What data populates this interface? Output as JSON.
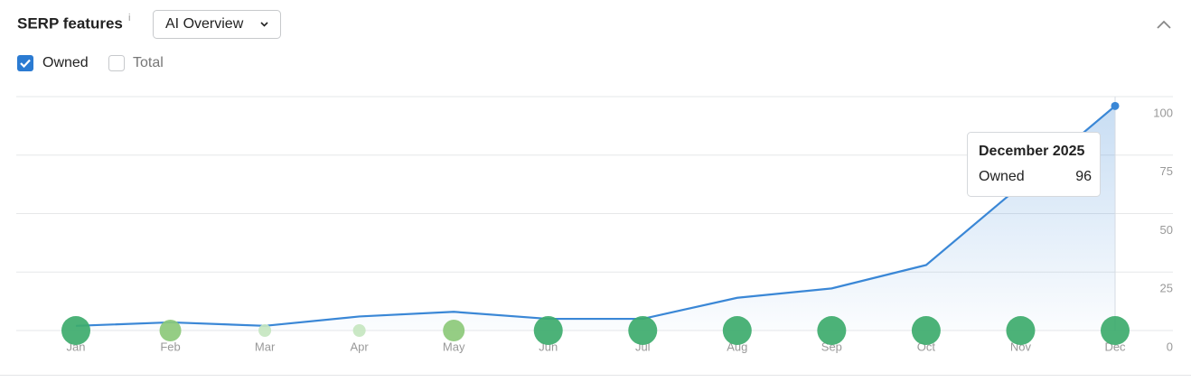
{
  "chart_data": {
    "type": "line",
    "title": "SERP features",
    "info": "i",
    "dropdown": "AI Overview",
    "categories": [
      "Jan",
      "Feb",
      "Mar",
      "Apr",
      "May",
      "Jun",
      "Jul",
      "Aug",
      "Sep",
      "Oct",
      "Nov",
      "Dec"
    ],
    "series": [
      {
        "name": "Owned",
        "color": "#3a87d6",
        "values": [
          2,
          3.5,
          2,
          6,
          8,
          5,
          5,
          14,
          18,
          28,
          62,
          96
        ]
      }
    ],
    "unchecked_legend": "Total",
    "marker_colors": [
      "#3dab6c",
      "#8cc97a",
      "#c6e6c0",
      "#c6e6c0",
      "#8cc97a",
      "#3dab6c",
      "#3dab6c",
      "#3dab6c",
      "#3dab6c",
      "#3dab6c",
      "#3dab6c",
      "#3dab6c"
    ],
    "ylim": [
      0,
      100
    ],
    "yticks": [
      0,
      25,
      50,
      75,
      100
    ],
    "grid": true,
    "tooltip": {
      "title": "December 2025",
      "index": 11
    }
  }
}
